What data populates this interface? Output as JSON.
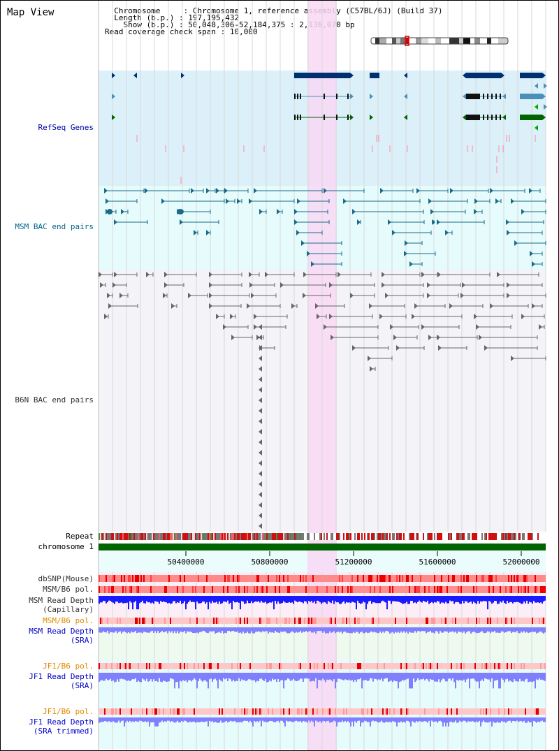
{
  "title": "Map View",
  "info": {
    "chromosome_key": "Chromosome",
    "chromosome_val": "Chromosome 1, reference assembly (C57BL/6J) (Build 37)",
    "length_key": "Length (b.p.)",
    "length_val": "197,195,432",
    "show_key": "Show (b.p.)",
    "show_val": "50,048,306-52,184,375 : 2,136,070 bp",
    "coverage_key": "Read coverage check span",
    "coverage_val": "10,000"
  },
  "tracks": {
    "refseq": "RefSeq Genes",
    "msm_bac": "MSM BAC end pairs",
    "b6n_bac": "B6N BAC end pairs",
    "repeat": "Repeat",
    "chromosome": "chromosome 1",
    "dbsnp": "dbSNP(Mouse)",
    "msm_b6_pol": "MSM/B6 pol.",
    "msm_read_depth": "MSM Read Depth",
    "capillary": "(Capillary)",
    "msm_b6_pol_sra": "MSM/B6 pol.",
    "msm_read_depth_sra": "MSM Read Depth",
    "sra1": "(SRA)",
    "jf1_b6_pol": "JF1/B6 pol.",
    "jf1_read_depth": "JF1 Read Depth",
    "sra2": "(SRA)",
    "jf1_b6_pol2": "JF1/B6 pol.",
    "jf1_read_depth2": "JF1 Read Depth",
    "sra_trimmed": "(SRA trimmed)"
  },
  "axis_ticks": [
    "50400000",
    "50800000",
    "51200000",
    "51600000",
    "52000000"
  ],
  "colors": {
    "refseq_bg": "#dcf0fa",
    "msm_bg": "#e6fbfb",
    "b6n_bg": "#f4f4f8",
    "highlight": "#f8d8f4",
    "gene_dark": "#003070",
    "gene_mid": "#4a90b8",
    "gene_green": "#006400",
    "chrom_green": "#006400",
    "depth_blue": "#1a1aff",
    "depth_light": "#8080ff"
  }
}
